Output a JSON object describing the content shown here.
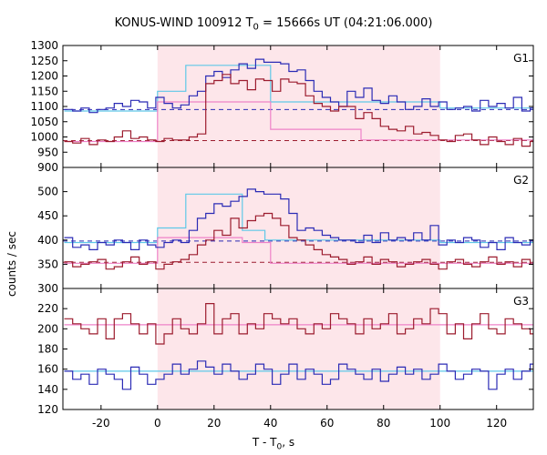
{
  "title_main": "KONUS-WIND 100912 T",
  "title_sub": "0",
  "title_rest": " = 15666s UT (04:21:06.000)",
  "ylabel": "counts / sec",
  "xlabel_main": "T - T",
  "xlabel_sub": "0",
  "xlabel_rest": ", s",
  "colors": {
    "blue": "#2b2bb5",
    "red": "#9c1c2e",
    "light_blue": "#5fc8e8",
    "pink": "#ee82c8",
    "shade": "#fde6ea"
  },
  "chart_data": {
    "type": "line",
    "xlim": [
      -33.5,
      133
    ],
    "xticks": [
      -20,
      0,
      20,
      40,
      60,
      80,
      100,
      120
    ],
    "shaded_interval": [
      0,
      100
    ],
    "bin_width": 2.944,
    "x_start": -33.0,
    "panels": [
      {
        "name": "G1",
        "ylim": [
          900,
          1300
        ],
        "yticks": [
          900,
          950,
          1000,
          1050,
          1100,
          1150,
          1200,
          1250,
          1300
        ],
        "series": [
          {
            "color_key": "blue",
            "values": [
              1090,
              1085,
              1095,
              1080,
              1090,
              1095,
              1110,
              1100,
              1120,
              1115,
              1095,
              1130,
              1110,
              1095,
              1105,
              1135,
              1150,
              1200,
              1215,
              1195,
              1220,
              1240,
              1225,
              1255,
              1245,
              1245,
              1240,
              1215,
              1220,
              1185,
              1150,
              1130,
              1115,
              1100,
              1150,
              1130,
              1160,
              1120,
              1110,
              1135,
              1115,
              1090,
              1100,
              1125,
              1100,
              1115,
              1090,
              1095,
              1100,
              1085,
              1120,
              1100,
              1110,
              1095,
              1130,
              1085,
              1095,
              1090,
              1095,
              1105
            ]
          },
          {
            "color_key": "red",
            "values": [
              985,
              980,
              995,
              975,
              990,
              985,
              1000,
              1020,
              995,
              1000,
              990,
              985,
              995,
              990,
              990,
              1000,
              1010,
              1175,
              1185,
              1205,
              1175,
              1185,
              1155,
              1190,
              1185,
              1150,
              1190,
              1180,
              1175,
              1135,
              1110,
              1100,
              1085,
              1100,
              1100,
              1060,
              1080,
              1060,
              1035,
              1025,
              1020,
              1035,
              1010,
              1015,
              1005,
              990,
              985,
              1005,
              1010,
              990,
              975,
              1000,
              985,
              975,
              995,
              970,
              985,
              1000,
              990,
              975
            ]
          }
        ],
        "fits": [
          {
            "color_key": "light_blue",
            "segments": [
              [
                -33,
                0,
                1085
              ],
              [
                0,
                10,
                1150
              ],
              [
                10,
                40,
                1235
              ],
              [
                40,
                100,
                1115
              ],
              [
                100,
                133,
                1095
              ]
            ]
          },
          {
            "color_key": "pink",
            "segments": [
              [
                -33,
                0,
                985
              ],
              [
                0,
                40,
                1115
              ],
              [
                40,
                72,
                1025
              ],
              [
                72,
                133,
                990
              ]
            ]
          }
        ],
        "baselines": [
          {
            "color_key": "blue",
            "value": 1090
          },
          {
            "color_key": "red",
            "value": 988
          }
        ]
      },
      {
        "name": "G2",
        "ylim": [
          300,
          550
        ],
        "yticks": [
          300,
          350,
          400,
          450,
          500
        ],
        "series": [
          {
            "color_key": "blue",
            "values": [
              405,
              385,
              390,
              380,
              395,
              390,
              400,
              395,
              380,
              400,
              390,
              385,
              395,
              400,
              395,
              420,
              445,
              455,
              475,
              470,
              480,
              490,
              505,
              500,
              495,
              495,
              485,
              455,
              420,
              425,
              420,
              410,
              405,
              400,
              400,
              395,
              410,
              395,
              415,
              400,
              405,
              400,
              415,
              400,
              430,
              390,
              400,
              395,
              405,
              400,
              385,
              395,
              380,
              405,
              395,
              390,
              400,
              395,
              400,
              395
            ]
          },
          {
            "color_key": "red",
            "values": [
              355,
              345,
              350,
              355,
              360,
              340,
              345,
              355,
              365,
              350,
              355,
              340,
              350,
              355,
              360,
              370,
              390,
              400,
              420,
              410,
              445,
              425,
              440,
              450,
              455,
              445,
              430,
              405,
              400,
              390,
              380,
              370,
              365,
              360,
              350,
              355,
              365,
              350,
              360,
              355,
              345,
              350,
              355,
              360,
              350,
              340,
              355,
              360,
              350,
              345,
              355,
              365,
              350,
              355,
              345,
              360,
              350,
              345,
              360,
              350
            ]
          }
        ],
        "fits": [
          {
            "color_key": "light_blue",
            "segments": [
              [
                -33,
                0,
                395
              ],
              [
                0,
                10,
                425
              ],
              [
                10,
                30,
                495
              ],
              [
                30,
                38,
                420
              ],
              [
                38,
                100,
                400
              ],
              [
                100,
                133,
                395
              ]
            ]
          },
          {
            "color_key": "pink",
            "segments": [
              [
                -33,
                0,
                352
              ],
              [
                0,
                30,
                405
              ],
              [
                30,
                40,
                395
              ],
              [
                40,
                133,
                352
              ]
            ]
          }
        ],
        "baselines": [
          {
            "color_key": "blue",
            "value": 398
          },
          {
            "color_key": "red",
            "value": 354
          }
        ]
      },
      {
        "name": "G3",
        "ylim": [
          120,
          240
        ],
        "yticks": [
          120,
          140,
          160,
          180,
          200,
          220
        ],
        "series": [
          {
            "color_key": "red",
            "values": [
              210,
              205,
              200,
              195,
              210,
              190,
              210,
              215,
              205,
              195,
              205,
              185,
              195,
              210,
              200,
              195,
              205,
              225,
              195,
              210,
              215,
              195,
              205,
              200,
              215,
              210,
              205,
              210,
              200,
              195,
              205,
              200,
              215,
              210,
              205,
              195,
              210,
              200,
              205,
              215,
              195,
              200,
              210,
              205,
              220,
              215,
              195,
              205,
              190,
              205,
              215,
              200,
              195,
              210,
              205,
              200,
              195,
              205,
              200,
              210
            ]
          },
          {
            "color_key": "blue",
            "values": [
              158,
              150,
              155,
              145,
              160,
              155,
              150,
              140,
              162,
              155,
              145,
              150,
              155,
              165,
              155,
              160,
              168,
              162,
              155,
              165,
              158,
              150,
              155,
              165,
              160,
              145,
              155,
              165,
              150,
              160,
              155,
              145,
              150,
              165,
              160,
              155,
              150,
              160,
              148,
              155,
              162,
              155,
              160,
              150,
              155,
              165,
              158,
              150,
              155,
              160,
              158,
              140,
              155,
              160,
              150,
              158,
              165,
              155,
              148,
              160
            ]
          }
        ],
        "fits": [
          {
            "color_key": "pink",
            "segments": [
              [
                -33,
                0,
                204
              ],
              [
                0,
                100,
                204
              ],
              [
                100,
                133,
                204
              ]
            ]
          },
          {
            "color_key": "light_blue",
            "segments": [
              [
                -33,
                0,
                158
              ],
              [
                0,
                100,
                158
              ],
              [
                100,
                133,
                158
              ]
            ]
          }
        ],
        "baselines": []
      }
    ]
  }
}
